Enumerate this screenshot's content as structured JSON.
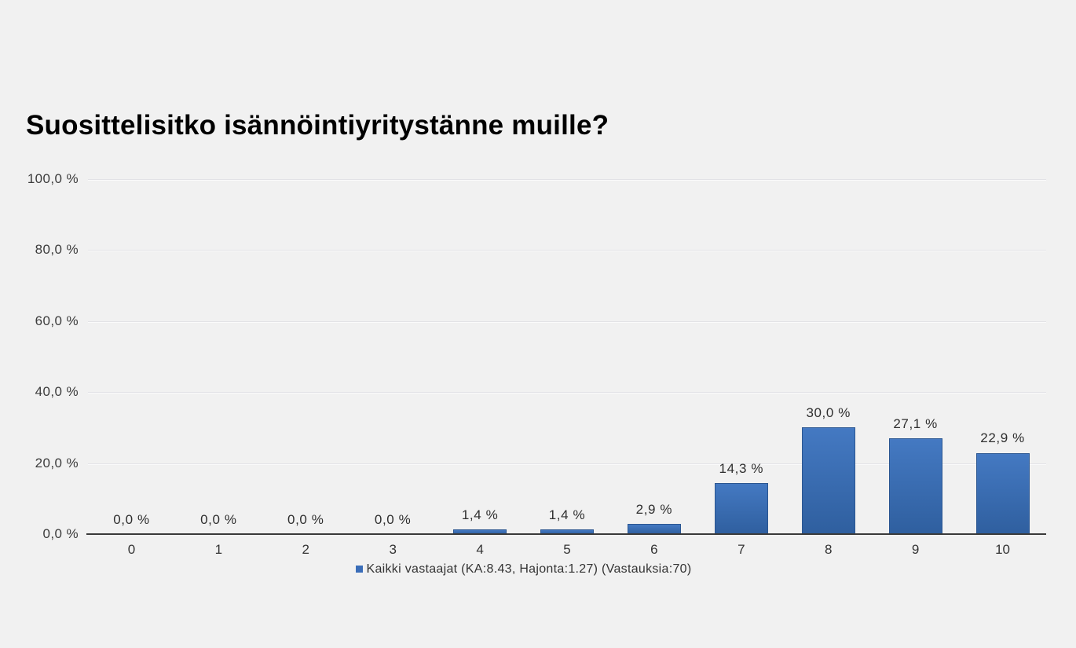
{
  "title": "Suosittelisitko isännöintiyritystänne muille?",
  "legend": {
    "label": "Kaikki vastaajat (KA:8.43, Hajonta:1.27) (Vastauksia:70)",
    "marker_color": "#3a6db8"
  },
  "chart_data": {
    "type": "bar",
    "title": "Suosittelisitko isännöintiyritystänne muille?",
    "categories": [
      "0",
      "1",
      "2",
      "3",
      "4",
      "5",
      "6",
      "7",
      "8",
      "9",
      "10"
    ],
    "values": [
      0.0,
      0.0,
      0.0,
      0.0,
      1.4,
      1.4,
      2.9,
      14.3,
      30.0,
      27.1,
      22.9
    ],
    "value_labels": [
      "0,0 %",
      "0,0 %",
      "0,0 %",
      "0,0 %",
      "1,4 %",
      "1,4 %",
      "2,9 %",
      "14,3 %",
      "30,0 %",
      "27,1 %",
      "22,9 %"
    ],
    "series": [
      {
        "name": "Kaikki vastaajat (KA:8.43, Hajonta:1.27) (Vastauksia:70)",
        "values": [
          0.0,
          0.0,
          0.0,
          0.0,
          1.4,
          1.4,
          2.9,
          14.3,
          30.0,
          27.1,
          22.9
        ]
      }
    ],
    "xlabel": "",
    "ylabel": "",
    "ylim": [
      0,
      100
    ],
    "yticks": [
      {
        "value": 100,
        "label": "100,0 %"
      },
      {
        "value": 80,
        "label": "80,0 %"
      },
      {
        "value": 60,
        "label": "60,0 %"
      },
      {
        "value": 40,
        "label": "40,0 %"
      },
      {
        "value": 20,
        "label": "20,0 %"
      },
      {
        "value": 0,
        "label": "0,0 %"
      }
    ],
    "grid": "horizontal",
    "legend_position": "bottom",
    "colors": {
      "background": "#f1f1f1",
      "bar_gradient_top": "#4479c2",
      "bar_gradient_bottom": "#2f5f9f",
      "bar_border": "#2b5691",
      "gridline": "#e2e2e6",
      "axis_line": "#3a3a3a",
      "text": "#333333"
    }
  }
}
